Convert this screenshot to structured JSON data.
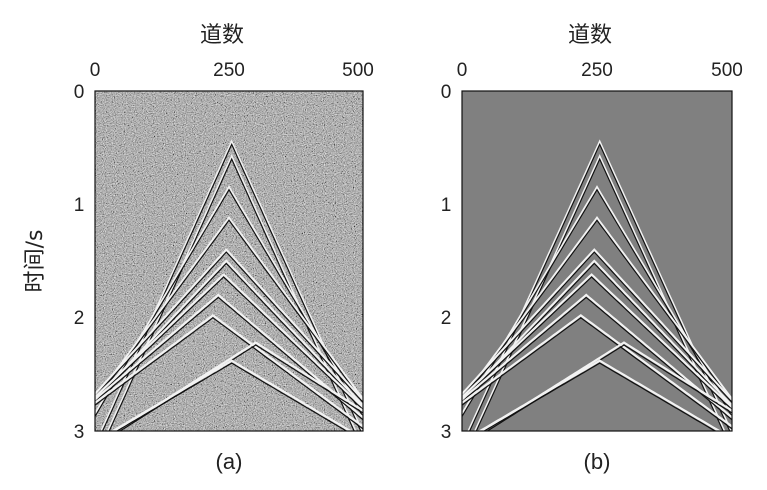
{
  "chart_data": [
    {
      "type": "heatmap",
      "caption": "(a)",
      "xlabel": "道数",
      "ylabel": "时间/s",
      "xticks": [
        0,
        250,
        500
      ],
      "yticks": [
        0,
        1,
        2,
        3
      ],
      "xlim": [
        0,
        500
      ],
      "ylim": [
        0,
        3
      ],
      "noise": "strong",
      "background": "#7a7a7a",
      "curves": [
        {
          "apex_x": 255,
          "apex_t": 0.45,
          "slope": 0.0105
        },
        {
          "apex_x": 255,
          "apex_t": 0.58,
          "slope": 0.0105
        },
        {
          "apex_x": 250,
          "apex_t": 0.85,
          "slope": 0.008
        },
        {
          "apex_x": 250,
          "apex_t": 1.12,
          "slope": 0.0064
        },
        {
          "apex_x": 245,
          "apex_t": 1.4,
          "slope": 0.0052
        },
        {
          "apex_x": 245,
          "apex_t": 1.5,
          "slope": 0.005
        },
        {
          "apex_x": 240,
          "apex_t": 1.62,
          "slope": 0.0045
        },
        {
          "apex_x": 230,
          "apex_t": 1.8,
          "slope": 0.004
        },
        {
          "apex_x": 220,
          "apex_t": 1.98,
          "slope": 0.0035
        },
        {
          "apex_x": 300,
          "apex_t": 2.22,
          "slope": 0.003
        },
        {
          "apex_x": 255,
          "apex_t": 2.38,
          "slope": 0.0028
        }
      ]
    },
    {
      "type": "heatmap",
      "caption": "(b)",
      "xlabel": "道数",
      "ylabel": "",
      "xticks": [
        0,
        250,
        500
      ],
      "yticks": [
        0,
        1,
        2,
        3
      ],
      "xlim": [
        0,
        500
      ],
      "ylim": [
        0,
        3
      ],
      "noise": "none",
      "background": "#808080",
      "curves": [
        {
          "apex_x": 255,
          "apex_t": 0.45,
          "slope": 0.0105
        },
        {
          "apex_x": 255,
          "apex_t": 0.58,
          "slope": 0.0105
        },
        {
          "apex_x": 250,
          "apex_t": 0.85,
          "slope": 0.008
        },
        {
          "apex_x": 250,
          "apex_t": 1.12,
          "slope": 0.0064
        },
        {
          "apex_x": 245,
          "apex_t": 1.4,
          "slope": 0.0052
        },
        {
          "apex_x": 245,
          "apex_t": 1.5,
          "slope": 0.005
        },
        {
          "apex_x": 240,
          "apex_t": 1.62,
          "slope": 0.0045
        },
        {
          "apex_x": 230,
          "apex_t": 1.8,
          "slope": 0.004
        },
        {
          "apex_x": 220,
          "apex_t": 1.98,
          "slope": 0.0035
        },
        {
          "apex_x": 300,
          "apex_t": 2.22,
          "slope": 0.003
        },
        {
          "apex_x": 255,
          "apex_t": 2.38,
          "slope": 0.0028
        }
      ]
    }
  ]
}
